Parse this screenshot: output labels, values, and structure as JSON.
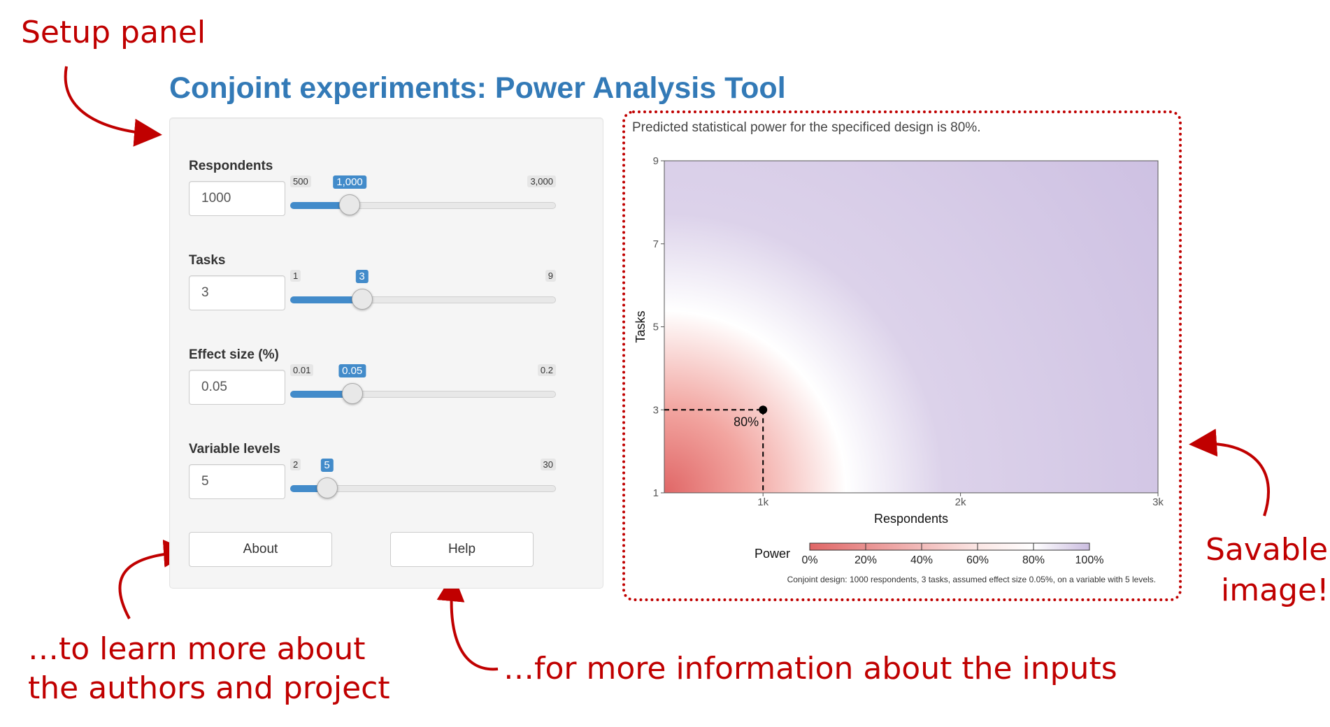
{
  "annotations": {
    "setup_panel": "Setup panel",
    "about_note_line1": "…to learn more about",
    "about_note_line2": "the authors and project",
    "help_note": "…for more information about the inputs",
    "savable_line1": "Savable",
    "savable_line2": "image!"
  },
  "app_title": "Conjoint experiments: Power Analysis Tool",
  "controls": {
    "respondents": {
      "label": "Respondents",
      "value": "1000",
      "min_label": "500",
      "max_label": "3,000",
      "current_label": "1,000",
      "min": 500,
      "max": 3000,
      "current": 1000
    },
    "tasks": {
      "label": "Tasks",
      "value": "3",
      "min_label": "1",
      "max_label": "9",
      "current_label": "3",
      "min": 1,
      "max": 9,
      "current": 3
    },
    "effect_size": {
      "label": "Effect size (%)",
      "value": "0.05",
      "min_label": "0.01",
      "max_label": "0.2",
      "current_label": "0.05",
      "min": 0.01,
      "max": 0.2,
      "current": 0.05
    },
    "variable_levels": {
      "label": "Variable levels",
      "value": "5",
      "min_label": "2",
      "max_label": "30",
      "current_label": "5",
      "min": 2,
      "max": 30,
      "current": 5
    }
  },
  "buttons": {
    "about": "About",
    "help": "Help"
  },
  "plot": {
    "caption": "Predicted statistical power for the specificed design is 80%.",
    "footnote": "Conjoint design: 1000 respondents, 3 tasks, assumed effect size 0.05%, on a variable with 5 levels.",
    "point_label": "80%",
    "colors": {
      "low": "#e06666",
      "mid": "#ffffff",
      "high": "#cbbde0",
      "accent": "#337ab7",
      "annotation": "#c00000",
      "slider": "#428bca"
    }
  },
  "chart_data": {
    "type": "heatmap",
    "xlabel": "Respondents",
    "ylabel": "Tasks",
    "xlim": [
      500,
      3000
    ],
    "ylim": [
      1,
      9
    ],
    "x_ticks": [
      1000,
      2000,
      3000
    ],
    "x_tick_labels": [
      "1k",
      "2k",
      "3k"
    ],
    "y_ticks": [
      1,
      3,
      5,
      7,
      9
    ],
    "y_tick_labels": [
      "1",
      "3",
      "5",
      "7",
      "9"
    ],
    "highlight_point": {
      "x": 1000,
      "y": 3,
      "value": 0.8
    },
    "legend": {
      "title": "Power",
      "placement": "bottom",
      "ticks": [
        "0%",
        "20%",
        "40%",
        "60%",
        "80%",
        "100%"
      ]
    }
  }
}
